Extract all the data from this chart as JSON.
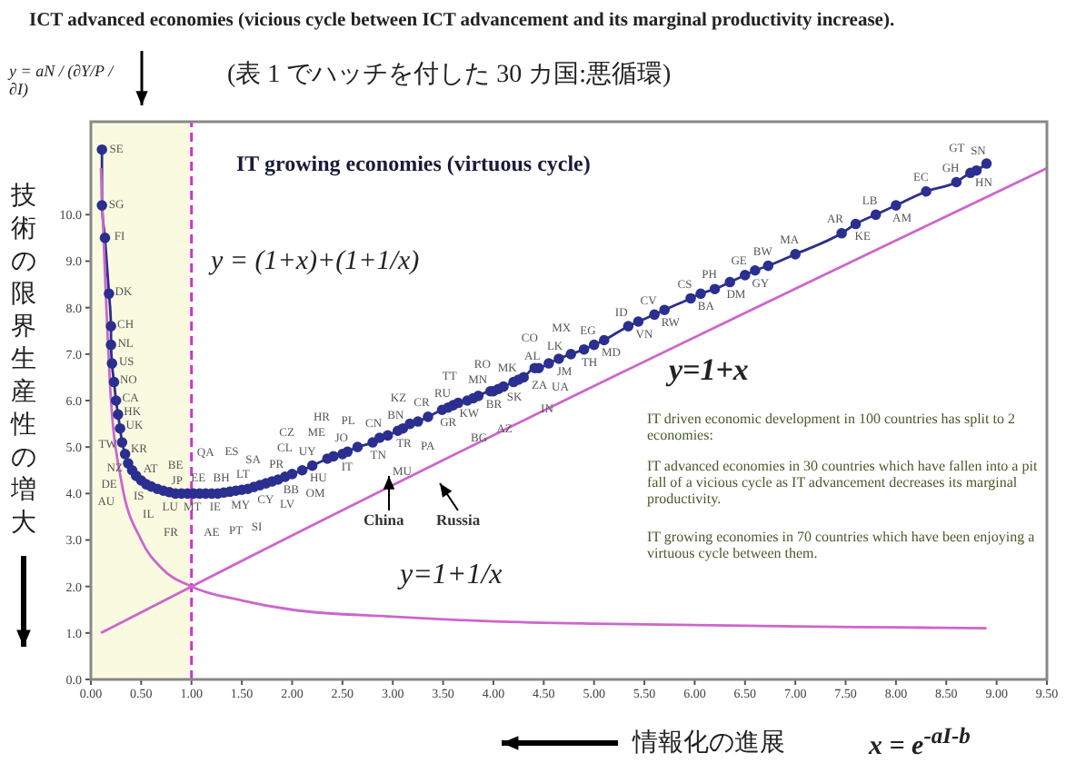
{
  "chart_data": {
    "type": "line",
    "title": "ICT advanced economies (vicious cycle between ICT advancement and its marginal productivity increase).",
    "subtitle": "(表 1 でハッチを付した 30 カ国:悪循環)",
    "xlabel": "情報化の進展",
    "ylabel": "技術の限界生産性の増大",
    "xlim": [
      0,
      9.5
    ],
    "ylim": [
      0,
      12
    ],
    "xticks": [
      {
        "value": 0,
        "label": "0.00"
      },
      {
        "value": 0.5,
        "label": "0.50"
      },
      {
        "value": 1,
        "label": "1.00"
      },
      {
        "value": 1.5,
        "label": "1.50"
      },
      {
        "value": 2,
        "label": "2.00"
      },
      {
        "value": 2.5,
        "label": "2.50"
      },
      {
        "value": 3,
        "label": "3.00"
      },
      {
        "value": 3.5,
        "label": "3.50"
      },
      {
        "value": 4,
        "label": "4.00"
      },
      {
        "value": 4.5,
        "label": "4.50"
      },
      {
        "value": 5,
        "label": "5.00"
      },
      {
        "value": 5.5,
        "label": "5.50"
      },
      {
        "value": 6,
        "label": "6.00"
      },
      {
        "value": 6.5,
        "label": "6.50"
      },
      {
        "value": 7,
        "label": "7.00"
      },
      {
        "value": 7.5,
        "label": "7.50"
      },
      {
        "value": 8,
        "label": "8.00"
      },
      {
        "value": 8.5,
        "label": "8.50"
      },
      {
        "value": 9,
        "label": "9.00"
      },
      {
        "value": 9.5,
        "label": "9.50"
      }
    ],
    "yticks": [
      {
        "value": 0,
        "label": "0.0"
      },
      {
        "value": 1,
        "label": "1.0"
      },
      {
        "value": 2,
        "label": "2.0"
      },
      {
        "value": 3,
        "label": "3.0"
      },
      {
        "value": 4,
        "label": "4.0"
      },
      {
        "value": 5,
        "label": "5.0"
      },
      {
        "value": 6,
        "label": "6.0"
      },
      {
        "value": 7,
        "label": "7.0"
      },
      {
        "value": 8,
        "label": "8.0"
      },
      {
        "value": 9,
        "label": "9.0"
      },
      {
        "value": 10,
        "label": "10.0"
      }
    ],
    "series": [
      {
        "color": "#2b2f8f",
        "marker": "circle",
        "line_style": "solid",
        "x": [
          0.11,
          0.11,
          0.14,
          0.18,
          0.2,
          0.2,
          0.21,
          0.23,
          0.25,
          0.27,
          0.29,
          0.31,
          0.34,
          0.37,
          0.41,
          0.45,
          0.5,
          0.55,
          0.6,
          0.66,
          0.72,
          0.78,
          0.84,
          0.9,
          0.96,
          1.02,
          1.08,
          1.14,
          1.2,
          1.26,
          1.32,
          1.38,
          1.44,
          1.5,
          1.56,
          1.62,
          1.68,
          1.74,
          1.8,
          1.86,
          1.93,
          2.0,
          2.1,
          2.2,
          2.35,
          2.41,
          2.5,
          2.55,
          2.65,
          2.8,
          2.87,
          2.95,
          3.05,
          3.1,
          3.17,
          3.25,
          3.35,
          3.49,
          3.55,
          3.6,
          3.65,
          3.74,
          3.8,
          3.85,
          3.97,
          4.0,
          4.05,
          4.1,
          4.2,
          4.25,
          4.3,
          4.41,
          4.45,
          4.55,
          4.65,
          4.77,
          4.9,
          5.0,
          5.1,
          5.34,
          5.44,
          5.6,
          5.7,
          5.96,
          6.06,
          6.2,
          6.35,
          6.5,
          6.6,
          6.73,
          7.0,
          7.46,
          7.6,
          7.8,
          8.0,
          8.3,
          8.6,
          8.74,
          8.8,
          8.9
        ],
        "values": [
          11.4,
          10.2,
          9.5,
          8.3,
          7.6,
          7.2,
          6.8,
          6.4,
          6.0,
          5.7,
          5.4,
          5.1,
          4.85,
          4.65,
          4.5,
          4.38,
          4.28,
          4.2,
          4.15,
          4.1,
          4.06,
          4.03,
          4.0,
          4.0,
          4.0,
          4.0,
          4.0,
          4.0,
          4.0,
          4.0,
          4.02,
          4.04,
          4.06,
          4.08,
          4.1,
          4.14,
          4.18,
          4.22,
          4.26,
          4.3,
          4.36,
          4.42,
          4.5,
          4.6,
          4.75,
          4.8,
          4.85,
          4.9,
          5.0,
          5.1,
          5.2,
          5.25,
          5.35,
          5.4,
          5.5,
          5.55,
          5.65,
          5.8,
          5.85,
          5.9,
          5.95,
          6.0,
          6.05,
          6.1,
          6.2,
          6.2,
          6.25,
          6.3,
          6.4,
          6.45,
          6.5,
          6.7,
          6.7,
          6.8,
          6.9,
          7.0,
          7.1,
          7.2,
          7.3,
          7.6,
          7.7,
          7.85,
          7.95,
          8.2,
          8.3,
          8.4,
          8.55,
          8.7,
          8.8,
          8.9,
          9.15,
          9.6,
          9.8,
          10.0,
          10.2,
          10.5,
          10.7,
          10.9,
          10.95,
          11.1
        ],
        "value_labels": [
          "SE",
          "SG",
          "FI",
          "DK",
          "CH",
          "NL",
          "US",
          "NO",
          "CA",
          "HK",
          "UK",
          "TW",
          "KR",
          "NZ",
          "DE",
          "AU",
          "AT",
          "IS",
          "JP",
          "IL",
          "LU",
          "BE",
          "FR",
          "MT",
          "EE",
          "IE",
          "BH",
          "QA",
          "AE",
          "MY",
          "LT",
          "PT",
          "SA",
          "CY",
          "SI",
          "ES",
          "PR",
          "BB",
          "CL",
          "LV",
          "OM",
          "UY",
          "CZ",
          "HU",
          "ME",
          "HR",
          "IT",
          "JO",
          "PL",
          "TN",
          "CN",
          "MU",
          "TR",
          "BN",
          "KZ",
          "PA",
          "CR",
          "GR",
          "RU",
          "KW",
          "TT",
          "BG",
          "MN",
          "BR",
          "RO",
          "AZ",
          "SK",
          "MK",
          "ZA",
          "AL",
          "IN",
          "CO",
          "LK",
          "UA",
          "JM",
          "MX",
          "TH",
          "EG",
          "MD",
          "ID",
          "VN",
          "CV",
          "RW",
          "CS",
          "BA",
          "PH",
          "DM",
          "GE",
          "GY",
          "BW",
          "MA",
          "AR",
          "KE",
          "LB",
          "AM",
          "EC",
          "GH",
          "GT",
          "HN",
          "SN"
        ]
      },
      {
        "color": "#cc66cc",
        "marker": "none",
        "line_style": "solid",
        "x": [
          0.1,
          1.0,
          9.5
        ],
        "values": [
          1.0,
          2.0,
          11.0
        ]
      },
      {
        "color": "#cc66cc",
        "marker": "none",
        "line_style": "solid",
        "x": [
          0.1,
          0.2,
          0.3,
          0.5,
          0.7,
          1.0,
          1.5,
          2,
          3,
          4,
          5,
          6,
          7,
          8,
          8.9
        ],
        "values": [
          11.0,
          6.0,
          4.3,
          3.0,
          2.4,
          2.0,
          1.7,
          1.5,
          1.35,
          1.25,
          1.2,
          1.17,
          1.14,
          1.12,
          1.1
        ]
      }
    ],
    "bands": [
      {
        "axis": "x",
        "from": 0,
        "to": 1,
        "color": "#fafae0"
      }
    ],
    "ref_lines": [
      {
        "axis": "x",
        "value": 1,
        "color": "#cc33cc",
        "line_style": "dashed"
      }
    ],
    "annotations": [
      "IT growing economies (virtuous cycle)",
      "IT driven economic development in 100 countries has split to 2 economies:",
      "IT advanced economies in 30 countries which have fallen into a pit fall of a vicious cycle as IT advancement decreases its marginal productivity.",
      "IT growing economies in 70 countries which have been enjoying a virtuous cycle between them.",
      "y = aN / (∂Y/P / ∂I)",
      "x = e$^{-aI-b}$",
      "y = (1+x)+(1+1/x)",
      "y=1+x",
      "y=1+1/x",
      "China",
      "Russia"
    ]
  }
}
